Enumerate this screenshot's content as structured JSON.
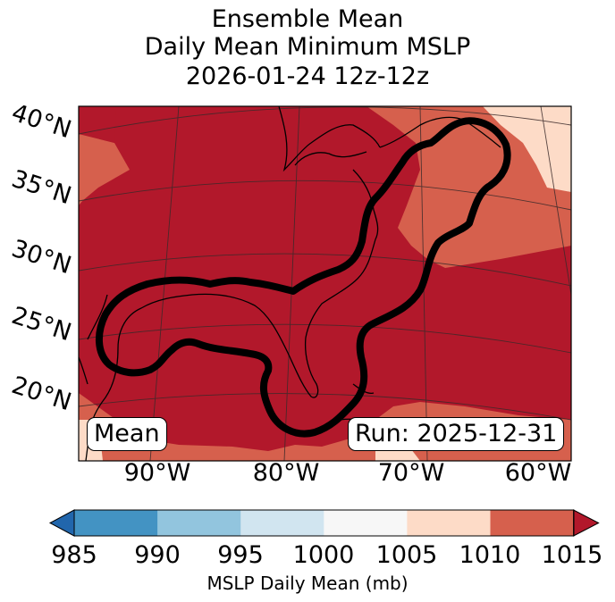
{
  "title": {
    "line1": "Ensemble Mean",
    "line2": "Daily Mean Minimum MSLP",
    "line3": "2026-01-24 12z-12z"
  },
  "map": {
    "latitude_labels": [
      "40°N",
      "35°N",
      "30°N",
      "25°N",
      "20°N"
    ],
    "longitude_labels": [
      "90°W",
      "80°W",
      "70°W",
      "60°W"
    ],
    "mean_box": "Mean",
    "run_box": "Run: 2025-12-31",
    "contour_color": "#000000",
    "land_line_color": "#000000",
    "grid_line_color": "#3a2a2a"
  },
  "colorbar": {
    "label": "MSLP Daily Mean (mb)",
    "ticks": [
      "985",
      "990",
      "995",
      "1000",
      "1005",
      "1010",
      "1015"
    ],
    "bins": [
      {
        "range": "<985",
        "color": "#2166ac"
      },
      {
        "range": "985-990",
        "color": "#4393c3"
      },
      {
        "range": "990-995",
        "color": "#92c5de"
      },
      {
        "range": "995-1000",
        "color": "#d1e5f0"
      },
      {
        "range": "1000-1005",
        "color": "#f7f7f7"
      },
      {
        "range": "1005-1010",
        "color": "#fddbc7"
      },
      {
        "range": "1010-1015",
        "color": "#d6604d"
      },
      {
        "range": ">1015",
        "color": "#b2182b"
      }
    ]
  }
}
